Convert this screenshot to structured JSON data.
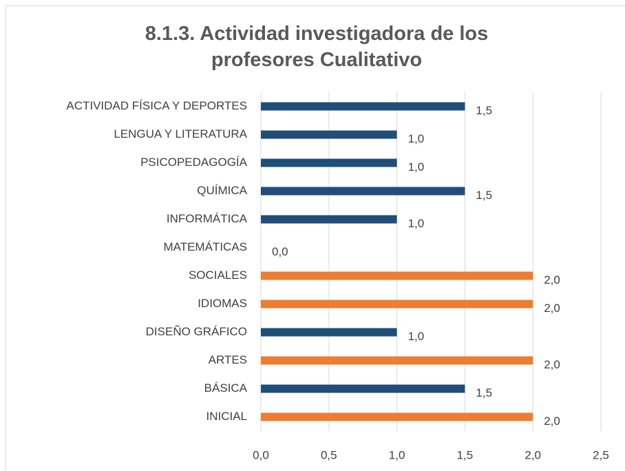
{
  "chart_data": {
    "type": "barh",
    "title": "8.1.3. Actividad investigadora de los profesores Cualitativo",
    "categories": [
      "ACTIVIDAD FÍSICA Y DEPORTES",
      "LENGUA Y LITERATURA",
      "PSICOPEDAGOGÍA",
      "QUÍMICA",
      "INFORMÁTICA",
      "MATEMÁTICAS",
      "SOCIALES",
      "IDIOMAS",
      "DISEÑO GRÁFICO",
      "ARTES",
      "BÁSICA",
      "INICIAL"
    ],
    "values": [
      1.5,
      1.0,
      1.0,
      1.5,
      1.0,
      0.0,
      2.0,
      2.0,
      1.0,
      2.0,
      1.5,
      2.0
    ],
    "value_labels": [
      "1,5",
      "1,0",
      "1,0",
      "1,5",
      "1,0",
      "0,0",
      "2,0",
      "2,0",
      "1,0",
      "2,0",
      "1,5",
      "2,0"
    ],
    "colors": [
      "#1f4e79",
      "#1f4e79",
      "#1f4e79",
      "#1f4e79",
      "#1f4e79",
      "#1f4e79",
      "#ed7d31",
      "#ed7d31",
      "#1f4e79",
      "#ed7d31",
      "#1f4e79",
      "#ed7d31"
    ],
    "xlim": [
      0,
      2.5
    ],
    "xticks": [
      {
        "value": 0,
        "label": "0,0"
      },
      {
        "value": 0.5,
        "label": "0,5"
      },
      {
        "value": 1,
        "label": "1,0"
      },
      {
        "value": 1.5,
        "label": "1,5"
      },
      {
        "value": 2,
        "label": "2,0"
      },
      {
        "value": 2.5,
        "label": "2,5"
      }
    ],
    "grid": true
  }
}
